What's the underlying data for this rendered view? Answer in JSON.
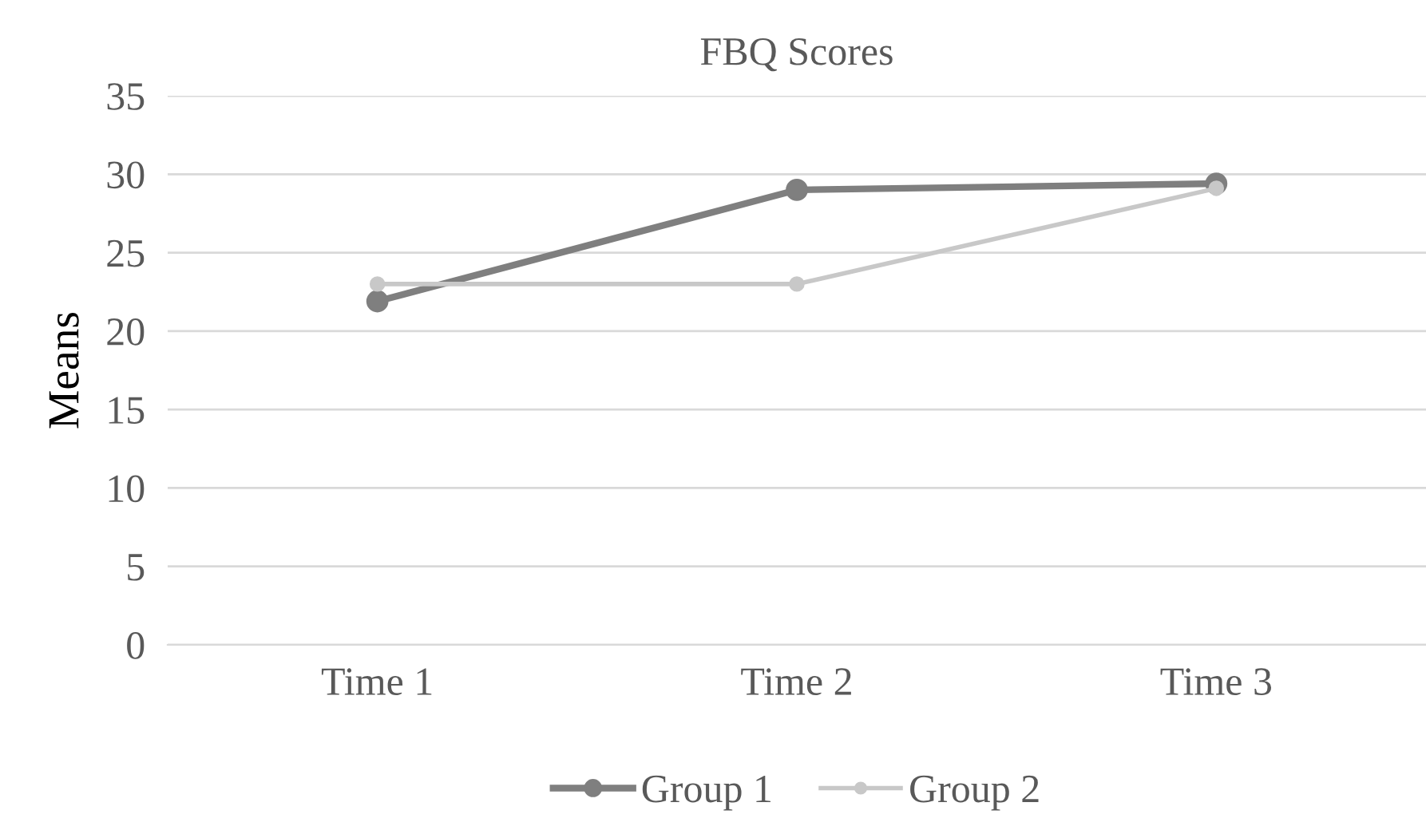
{
  "chart_data": {
    "type": "line",
    "title": "FBQ Scores",
    "ylabel": "Means",
    "categories": [
      "Time 1",
      "Time 2",
      "Time 3"
    ],
    "series": [
      {
        "name": "Group 1",
        "color": "#7f7f7f",
        "values": [
          21.9,
          29.0,
          29.4
        ]
      },
      {
        "name": "Group 2",
        "color": "#c8c8c8",
        "values": [
          23.0,
          23.0,
          29.1
        ]
      }
    ],
    "ylim": [
      0,
      35
    ],
    "yticks": [
      0,
      5,
      10,
      15,
      20,
      25,
      30,
      35
    ],
    "grid": "y",
    "legend": "bottom",
    "marker": "circle",
    "line_style": "solid"
  }
}
